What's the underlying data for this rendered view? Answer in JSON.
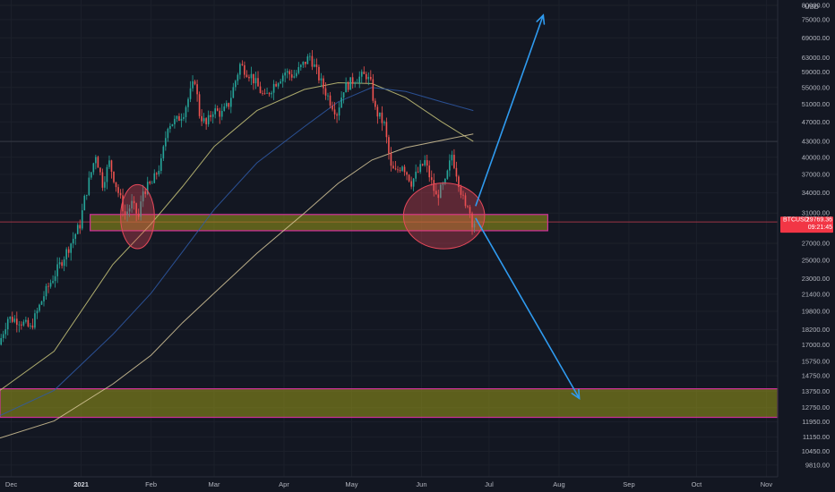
{
  "chart_data": {
    "type": "candlestick",
    "symbol": "BTCUSD",
    "currency": "USD",
    "last_price": "29769.36",
    "countdown": "09:21:45",
    "y_scale": "log",
    "ylim": [
      9300,
      82000
    ],
    "y_ticks": [
      {
        "label": "80000.00",
        "value": 80000
      },
      {
        "label": "75000.00",
        "value": 75000
      },
      {
        "label": "69000.00",
        "value": 69000
      },
      {
        "label": "63000.00",
        "value": 63000
      },
      {
        "label": "59000.00",
        "value": 59000
      },
      {
        "label": "55000.00",
        "value": 55000
      },
      {
        "label": "51000.00",
        "value": 51000
      },
      {
        "label": "47000.00",
        "value": 47000
      },
      {
        "label": "43000.00",
        "value": 43000
      },
      {
        "label": "40000.00",
        "value": 40000
      },
      {
        "label": "37000.00",
        "value": 37000
      },
      {
        "label": "34000.00",
        "value": 34000
      },
      {
        "label": "31000.00",
        "value": 31000
      },
      {
        "label": "27000.00",
        "value": 27000
      },
      {
        "label": "25000.00",
        "value": 25000
      },
      {
        "label": "23000.00",
        "value": 23000
      },
      {
        "label": "21400.00",
        "value": 21400
      },
      {
        "label": "19800.00",
        "value": 19800
      },
      {
        "label": "18200.00",
        "value": 18200
      },
      {
        "label": "17000.00",
        "value": 17000
      },
      {
        "label": "15750.00",
        "value": 15750
      },
      {
        "label": "14750.00",
        "value": 14750
      },
      {
        "label": "13750.00",
        "value": 13750
      },
      {
        "label": "12750.00",
        "value": 12750
      },
      {
        "label": "11950.00",
        "value": 11950
      },
      {
        "label": "11150.00",
        "value": 11150
      },
      {
        "label": "10450.00",
        "value": 10450
      },
      {
        "label": "9810.00",
        "value": 9810
      }
    ],
    "x_range": [
      "2020-11-26",
      "2021-11-06"
    ],
    "x_ticks": [
      {
        "label": "Dec",
        "date": "2020-12-01",
        "major": false
      },
      {
        "label": "2021",
        "date": "2021-01-01",
        "major": true
      },
      {
        "label": "Feb",
        "date": "2021-02-01",
        "major": false
      },
      {
        "label": "Mar",
        "date": "2021-03-01",
        "major": false
      },
      {
        "label": "Apr",
        "date": "2021-04-01",
        "major": false
      },
      {
        "label": "May",
        "date": "2021-05-01",
        "major": false
      },
      {
        "label": "Jun",
        "date": "2021-06-01",
        "major": false
      },
      {
        "label": "Jul",
        "date": "2021-07-01",
        "major": false
      },
      {
        "label": "Aug",
        "date": "2021-08-01",
        "major": false
      },
      {
        "label": "Sep",
        "date": "2021-09-01",
        "major": false
      },
      {
        "label": "Oct",
        "date": "2021-10-01",
        "major": false
      },
      {
        "label": "Nov",
        "date": "2021-11-01",
        "major": false
      }
    ],
    "price_path": [
      [
        "2020-11-26",
        17000
      ],
      [
        "2020-11-30",
        19200
      ],
      [
        "2020-12-05",
        19000
      ],
      [
        "2020-12-10",
        18300
      ],
      [
        "2020-12-16",
        21300
      ],
      [
        "2020-12-21",
        23500
      ],
      [
        "2020-12-27",
        26500
      ],
      [
        "2021-01-01",
        29400
      ],
      [
        "2021-01-03",
        33000
      ],
      [
        "2021-01-08",
        40600
      ],
      [
        "2021-01-11",
        35500
      ],
      [
        "2021-01-14",
        39000
      ],
      [
        "2021-01-21",
        30800
      ],
      [
        "2021-01-24",
        32300
      ],
      [
        "2021-01-27",
        30400
      ],
      [
        "2021-01-29",
        34300
      ],
      [
        "2021-02-02",
        35500
      ],
      [
        "2021-02-06",
        39000
      ],
      [
        "2021-02-09",
        46500
      ],
      [
        "2021-02-13",
        47300
      ],
      [
        "2021-02-16",
        49200
      ],
      [
        "2021-02-21",
        57000
      ],
      [
        "2021-02-23",
        48800
      ],
      [
        "2021-02-26",
        46300
      ],
      [
        "2021-03-01",
        49600
      ],
      [
        "2021-03-05",
        48800
      ],
      [
        "2021-03-08",
        51000
      ],
      [
        "2021-03-13",
        61000
      ],
      [
        "2021-03-18",
        58000
      ],
      [
        "2021-03-24",
        52300
      ],
      [
        "2021-03-28",
        55800
      ],
      [
        "2021-04-02",
        59000
      ],
      [
        "2021-04-06",
        58000
      ],
      [
        "2021-04-13",
        63500
      ],
      [
        "2021-04-18",
        56200
      ],
      [
        "2021-04-22",
        51700
      ],
      [
        "2021-04-25",
        49000
      ],
      [
        "2021-04-28",
        54800
      ],
      [
        "2021-05-03",
        57200
      ],
      [
        "2021-05-08",
        58200
      ],
      [
        "2021-05-10",
        55800
      ],
      [
        "2021-05-12",
        49600
      ],
      [
        "2021-05-16",
        46400
      ],
      [
        "2021-05-19",
        38000
      ],
      [
        "2021-05-21",
        37300
      ],
      [
        "2021-05-24",
        38800
      ],
      [
        "2021-05-28",
        35700
      ],
      [
        "2021-06-03",
        39200
      ],
      [
        "2021-06-08",
        33400
      ],
      [
        "2021-06-12",
        35500
      ],
      [
        "2021-06-15",
        40500
      ],
      [
        "2021-06-18",
        35800
      ],
      [
        "2021-06-21",
        31600
      ],
      [
        "2021-06-22",
        32500
      ],
      [
        "2021-06-24",
        29769
      ]
    ],
    "indicators": [
      {
        "type": "moving_average",
        "color": "#c9c67a",
        "path": [
          [
            "2020-11-26",
            13800
          ],
          [
            "2020-12-20",
            16500
          ],
          [
            "2021-01-15",
            24500
          ],
          [
            "2021-02-01",
            29500
          ],
          [
            "2021-02-15",
            35000
          ],
          [
            "2021-03-01",
            42000
          ],
          [
            "2021-03-20",
            49500
          ],
          [
            "2021-04-10",
            54500
          ],
          [
            "2021-04-25",
            56200
          ],
          [
            "2021-05-10",
            56000
          ],
          [
            "2021-05-25",
            52500
          ],
          [
            "2021-06-10",
            47000
          ],
          [
            "2021-06-24",
            43000
          ]
        ]
      },
      {
        "type": "moving_average",
        "color": "#2f5aa8",
        "path": [
          [
            "2020-11-26",
            12300
          ],
          [
            "2020-12-20",
            13800
          ],
          [
            "2021-01-15",
            17800
          ],
          [
            "2021-02-01",
            21500
          ],
          [
            "2021-02-15",
            26000
          ],
          [
            "2021-03-01",
            31500
          ],
          [
            "2021-03-20",
            39000
          ],
          [
            "2021-04-10",
            46000
          ],
          [
            "2021-04-25",
            51500
          ],
          [
            "2021-05-10",
            55000
          ],
          [
            "2021-05-25",
            54000
          ],
          [
            "2021-06-10",
            51500
          ],
          [
            "2021-06-24",
            49500
          ]
        ]
      },
      {
        "type": "moving_average",
        "color": "#d8c89a",
        "path": [
          [
            "2020-11-26",
            11100
          ],
          [
            "2020-12-20",
            12000
          ],
          [
            "2021-01-15",
            14200
          ],
          [
            "2021-02-01",
            16200
          ],
          [
            "2021-02-15",
            18800
          ],
          [
            "2021-03-01",
            21500
          ],
          [
            "2021-03-20",
            25800
          ],
          [
            "2021-04-10",
            31000
          ],
          [
            "2021-04-25",
            35500
          ],
          [
            "2021-05-10",
            39500
          ],
          [
            "2021-05-25",
            41800
          ],
          [
            "2021-06-10",
            43200
          ],
          [
            "2021-06-24",
            44500
          ]
        ]
      }
    ],
    "annotations": [
      {
        "type": "zone",
        "color": "#9a9a18",
        "border": "#d0309a",
        "date_range": [
          "2021-01-05",
          "2021-07-27"
        ],
        "price_range": [
          28600,
          30800
        ]
      },
      {
        "type": "zone",
        "color": "#9a9a18",
        "border": "#d0309a",
        "date_range": [
          "2020-11-26",
          "2021-11-06"
        ],
        "price_range": [
          12200,
          13900
        ]
      },
      {
        "type": "ellipse",
        "color": "#e5485a",
        "center_date": "2021-01-26",
        "center_price": 30500,
        "spans_dates": [
          "2021-01-18",
          "2021-02-02"
        ],
        "spans_prices": [
          26500,
          35500
        ]
      },
      {
        "type": "ellipse",
        "color": "#e5485a",
        "center_date": "2021-06-11",
        "center_price": 30600,
        "spans_dates": [
          "2021-05-24",
          "2021-06-29"
        ],
        "spans_prices": [
          26300,
          35500
        ]
      },
      {
        "type": "arrow",
        "color": "#2f9bf0",
        "from": [
          "2021-06-25",
          32000
        ],
        "to": [
          "2021-07-25",
          76500
        ]
      },
      {
        "type": "arrow",
        "color": "#2f9bf0",
        "from": [
          "2021-06-25",
          30300
        ],
        "to": [
          "2021-08-10",
          13300
        ]
      },
      {
        "type": "horizontal_line",
        "color": "#363a45",
        "price": 43000
      },
      {
        "type": "horizontal_line",
        "color": "#9b3444",
        "price": 29769
      }
    ]
  }
}
